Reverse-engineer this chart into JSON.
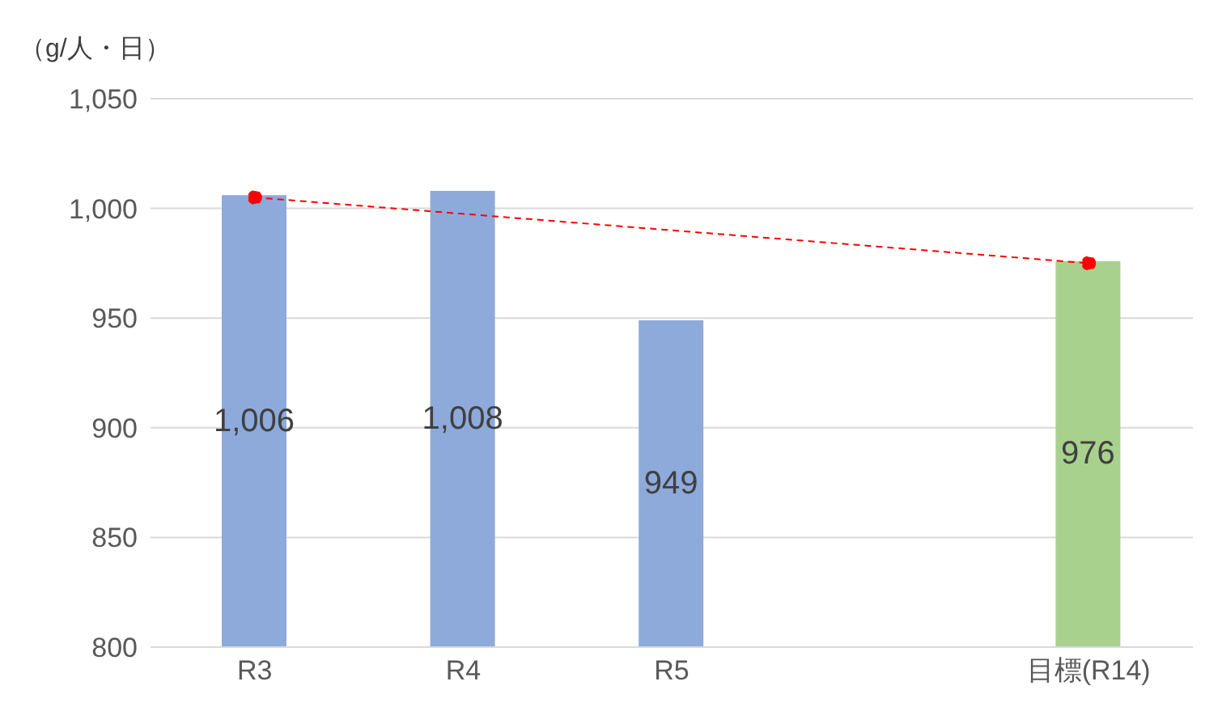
{
  "chart_data": {
    "type": "bar",
    "ylabel": "（g/人・日）",
    "categories": [
      "R3",
      "R4",
      "R5",
      null,
      "目標(R14)"
    ],
    "series": [
      {
        "colors": [
          "#8eaadb",
          "#8eaadb",
          "#8eaadb",
          "#8eaadb",
          "#a9d18e"
        ],
        "values": [
          1006,
          1008,
          949,
          null,
          976
        ],
        "value_labels": [
          "1,006",
          "1,008",
          "949",
          null,
          "976"
        ]
      },
      {
        "type": "line",
        "color": "#ff0000",
        "values": [
          1005,
          null,
          null,
          null,
          975
        ],
        "line_style": "dashed",
        "marker": "circle"
      }
    ],
    "ylim": [
      800,
      1050
    ],
    "yticks": [
      800,
      850,
      900,
      950,
      {
        "value": 1000,
        "label": "1,000"
      },
      {
        "value": 1050,
        "label": "1,050"
      }
    ],
    "grid": "y",
    "legend": false
  }
}
